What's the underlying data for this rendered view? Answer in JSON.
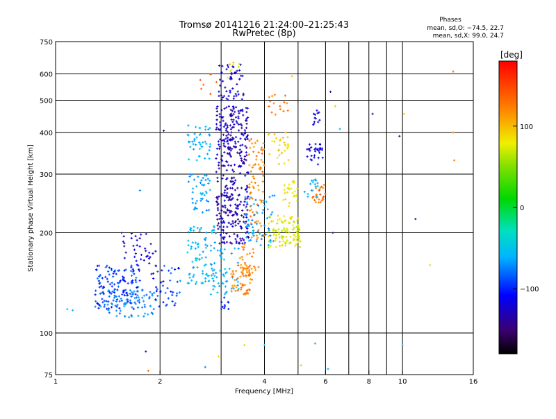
{
  "chart_data": {
    "type": "scatter",
    "title": "Tromsø 20141216 21:24:00–21:25:43",
    "subtitle": "RwPretec (8p)",
    "xlabel": "Frequency [MHz]",
    "ylabel": "Stationary phase Virtual Height [km]",
    "xscale": "log",
    "yscale": "log",
    "xlim": [
      1,
      16
    ],
    "ylim": [
      75,
      750
    ],
    "x_ticks": [
      1,
      2,
      4,
      6,
      8,
      10,
      16
    ],
    "x_tick_labels": [
      "1",
      "2",
      "4",
      "6",
      "8",
      "10",
      "16"
    ],
    "x_grid": [
      2,
      3,
      4,
      5,
      6,
      7,
      8,
      9,
      10
    ],
    "y_ticks": [
      75,
      100,
      200,
      300,
      400,
      500,
      600,
      750
    ],
    "y_tick_labels": [
      "75",
      "100",
      "200",
      "300",
      "400",
      "500",
      "600",
      "750"
    ],
    "y_grid": [
      100,
      200,
      300,
      400,
      500,
      600
    ],
    "annotation": {
      "header": "Phases",
      "line1": "mean, sd,O: −74.5, 22.7",
      "line2": "mean, sd,X:  99.0, 24.7"
    },
    "colorbar": {
      "label": "[deg]",
      "min": -180,
      "max": 180,
      "ticks": [
        100,
        0,
        -100
      ],
      "tick_labels": [
        "100",
        "0",
        "−100"
      ],
      "colormap": "rainbow"
    },
    "clusters": [
      {
        "f": [
          1.3,
          1.75
        ],
        "h": [
          118,
          160
        ],
        "phase": [
          -115,
          -70
        ],
        "n": 140
      },
      {
        "f": [
          1.4,
          1.95
        ],
        "h": [
          110,
          135
        ],
        "phase": [
          -85,
          -60
        ],
        "n": 70
      },
      {
        "f": [
          1.55,
          1.95
        ],
        "h": [
          150,
          200
        ],
        "phase": [
          -140,
          -105
        ],
        "n": 40
      },
      {
        "f": [
          1.9,
          2.3
        ],
        "h": [
          120,
          160
        ],
        "phase": [
          -120,
          -70
        ],
        "n": 40
      },
      {
        "f": [
          2.4,
          2.9
        ],
        "h": [
          140,
          210
        ],
        "phase": [
          -70,
          -45
        ],
        "n": 90
      },
      {
        "f": [
          2.4,
          2.8
        ],
        "h": [
          230,
          300
        ],
        "phase": [
          -75,
          -55
        ],
        "n": 45
      },
      {
        "f": [
          2.4,
          2.8
        ],
        "h": [
          330,
          420
        ],
        "phase": [
          -70,
          -50
        ],
        "n": 45
      },
      {
        "f": [
          2.9,
          3.6
        ],
        "h": [
          185,
          480
        ],
        "phase": [
          -145,
          -110
        ],
        "n": 380
      },
      {
        "f": [
          2.95,
          3.5
        ],
        "h": [
          500,
          640
        ],
        "phase": [
          -140,
          -110
        ],
        "n": 50
      },
      {
        "f": [
          2.8,
          3.4
        ],
        "h": [
          130,
          180
        ],
        "phase": [
          -70,
          -45
        ],
        "n": 45
      },
      {
        "f": [
          3.2,
          3.7
        ],
        "h": [
          130,
          160
        ],
        "phase": [
          105,
          140
        ],
        "n": 55
      },
      {
        "f": [
          3.4,
          3.9
        ],
        "h": [
          145,
          185
        ],
        "phase": [
          110,
          140
        ],
        "n": 30
      },
      {
        "f": [
          3.6,
          4.0
        ],
        "h": [
          190,
          400
        ],
        "phase": [
          105,
          140
        ],
        "n": 80
      },
      {
        "f": [
          3.5,
          4.3
        ],
        "h": [
          180,
          260
        ],
        "phase": [
          -80,
          -50
        ],
        "n": 60
      },
      {
        "f": [
          4.1,
          5.1
        ],
        "h": [
          180,
          225
        ],
        "phase": [
          60,
          95
        ],
        "n": 100
      },
      {
        "f": [
          4.5,
          5.0
        ],
        "h": [
          240,
          290
        ],
        "phase": [
          70,
          100
        ],
        "n": 25
      },
      {
        "f": [
          4.1,
          4.7
        ],
        "h": [
          320,
          400
        ],
        "phase": [
          75,
          105
        ],
        "n": 30
      },
      {
        "f": [
          4.1,
          4.7
        ],
        "h": [
          450,
          520
        ],
        "phase": [
          115,
          145
        ],
        "n": 15
      },
      {
        "f": [
          5.3,
          5.9
        ],
        "h": [
          320,
          370
        ],
        "phase": [
          -130,
          -100
        ],
        "n": 30
      },
      {
        "f": [
          5.5,
          6.0
        ],
        "h": [
          245,
          280
        ],
        "phase": [
          110,
          145
        ],
        "n": 25
      },
      {
        "f": [
          5.2,
          5.7
        ],
        "h": [
          255,
          290
        ],
        "phase": [
          -70,
          -50
        ],
        "n": 15
      },
      {
        "f": [
          5.5,
          5.8
        ],
        "h": [
          420,
          470
        ],
        "phase": [
          -130,
          -100
        ],
        "n": 12
      },
      {
        "f": [
          3.1,
          3.4
        ],
        "h": [
          580,
          650
        ],
        "phase": [
          70,
          110
        ],
        "n": 8
      },
      {
        "f": [
          2.6,
          3.0
        ],
        "h": [
          520,
          600
        ],
        "phase": [
          120,
          150
        ],
        "n": 6
      },
      {
        "f": [
          3.0,
          3.2
        ],
        "h": [
          118,
          128
        ],
        "phase": [
          -110,
          -90
        ],
        "n": 10
      }
    ],
    "scattered_points": [
      {
        "f": 1.08,
        "h": 118,
        "phase": -55
      },
      {
        "f": 1.12,
        "h": 117,
        "phase": -55
      },
      {
        "f": 1.35,
        "h": 120,
        "phase": -60
      },
      {
        "f": 1.55,
        "h": 200,
        "phase": -150
      },
      {
        "f": 1.75,
        "h": 268,
        "phase": -70
      },
      {
        "f": 1.82,
        "h": 88,
        "phase": -100
      },
      {
        "f": 1.85,
        "h": 77,
        "phase": 130
      },
      {
        "f": 2.05,
        "h": 405,
        "phase": -150
      },
      {
        "f": 2.7,
        "h": 79,
        "phase": -70
      },
      {
        "f": 2.95,
        "h": 85,
        "phase": 90
      },
      {
        "f": 3.5,
        "h": 92,
        "phase": 90
      },
      {
        "f": 4.0,
        "h": 92,
        "phase": -60
      },
      {
        "f": 5.1,
        "h": 80,
        "phase": 95
      },
      {
        "f": 5.6,
        "h": 93,
        "phase": -60
      },
      {
        "f": 6.1,
        "h": 78,
        "phase": -60
      },
      {
        "f": 6.2,
        "h": 530,
        "phase": -140
      },
      {
        "f": 6.3,
        "h": 200,
        "phase": -140
      },
      {
        "f": 6.4,
        "h": 480,
        "phase": 95
      },
      {
        "f": 6.6,
        "h": 410,
        "phase": -55
      },
      {
        "f": 8.2,
        "h": 455,
        "phase": -140
      },
      {
        "f": 9.8,
        "h": 390,
        "phase": -150
      },
      {
        "f": 10.1,
        "h": 455,
        "phase": 95
      },
      {
        "f": 10.9,
        "h": 220,
        "phase": -140
      },
      {
        "f": 10.0,
        "h": 92,
        "phase": -60
      },
      {
        "f": 14.0,
        "h": 610,
        "phase": 130
      },
      {
        "f": 14.0,
        "h": 400,
        "phase": 120
      },
      {
        "f": 14.1,
        "h": 330,
        "phase": 120
      },
      {
        "f": 12.0,
        "h": 160,
        "phase": 90
      },
      {
        "f": 4.6,
        "h": 365,
        "phase": 80
      },
      {
        "f": 4.8,
        "h": 590,
        "phase": 95
      }
    ]
  }
}
